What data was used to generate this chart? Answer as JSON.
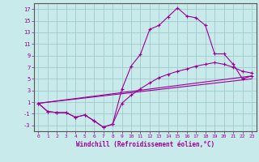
{
  "xlabel": "Windchill (Refroidissement éolien,°C)",
  "xlim": [
    -0.5,
    23.5
  ],
  "ylim": [
    -4,
    18
  ],
  "yticks": [
    -3,
    -1,
    1,
    3,
    5,
    7,
    9,
    11,
    13,
    15,
    17
  ],
  "xticks": [
    0,
    1,
    2,
    3,
    4,
    5,
    6,
    7,
    8,
    9,
    10,
    11,
    12,
    13,
    14,
    15,
    16,
    17,
    18,
    19,
    20,
    21,
    22,
    23
  ],
  "background_color": "#c8eaea",
  "grid_color": "#a0cccc",
  "line_color": "#990099",
  "line1_x": [
    0,
    1,
    2,
    3,
    4,
    5,
    6,
    7,
    8,
    9,
    10,
    11,
    12,
    13,
    14,
    15,
    16,
    17,
    18,
    19,
    20,
    21,
    22,
    23
  ],
  "line1_y": [
    0.8,
    -0.6,
    -0.8,
    -0.8,
    -1.6,
    -1.2,
    -2.2,
    -3.3,
    -2.8,
    3.2,
    7.2,
    9.2,
    13.5,
    14.2,
    15.7,
    17.2,
    15.8,
    15.5,
    14.2,
    9.3,
    9.3,
    7.5,
    5.0,
    5.5
  ],
  "line2_x": [
    0,
    1,
    2,
    3,
    4,
    5,
    6,
    7,
    8,
    9,
    10,
    11,
    12,
    13,
    14,
    15,
    16,
    17,
    18,
    19,
    20,
    21,
    22,
    23
  ],
  "line2_y": [
    0.8,
    -0.6,
    -0.8,
    -0.8,
    -1.6,
    -1.2,
    -2.2,
    -3.3,
    -2.8,
    0.8,
    2.2,
    3.3,
    4.3,
    5.2,
    5.8,
    6.3,
    6.7,
    7.2,
    7.5,
    7.8,
    7.5,
    7.0,
    6.3,
    6.0
  ],
  "line3_x": [
    0,
    23
  ],
  "line3_y": [
    0.8,
    5.5
  ],
  "line4_x": [
    0,
    23
  ],
  "line4_y": [
    0.8,
    5.0
  ]
}
